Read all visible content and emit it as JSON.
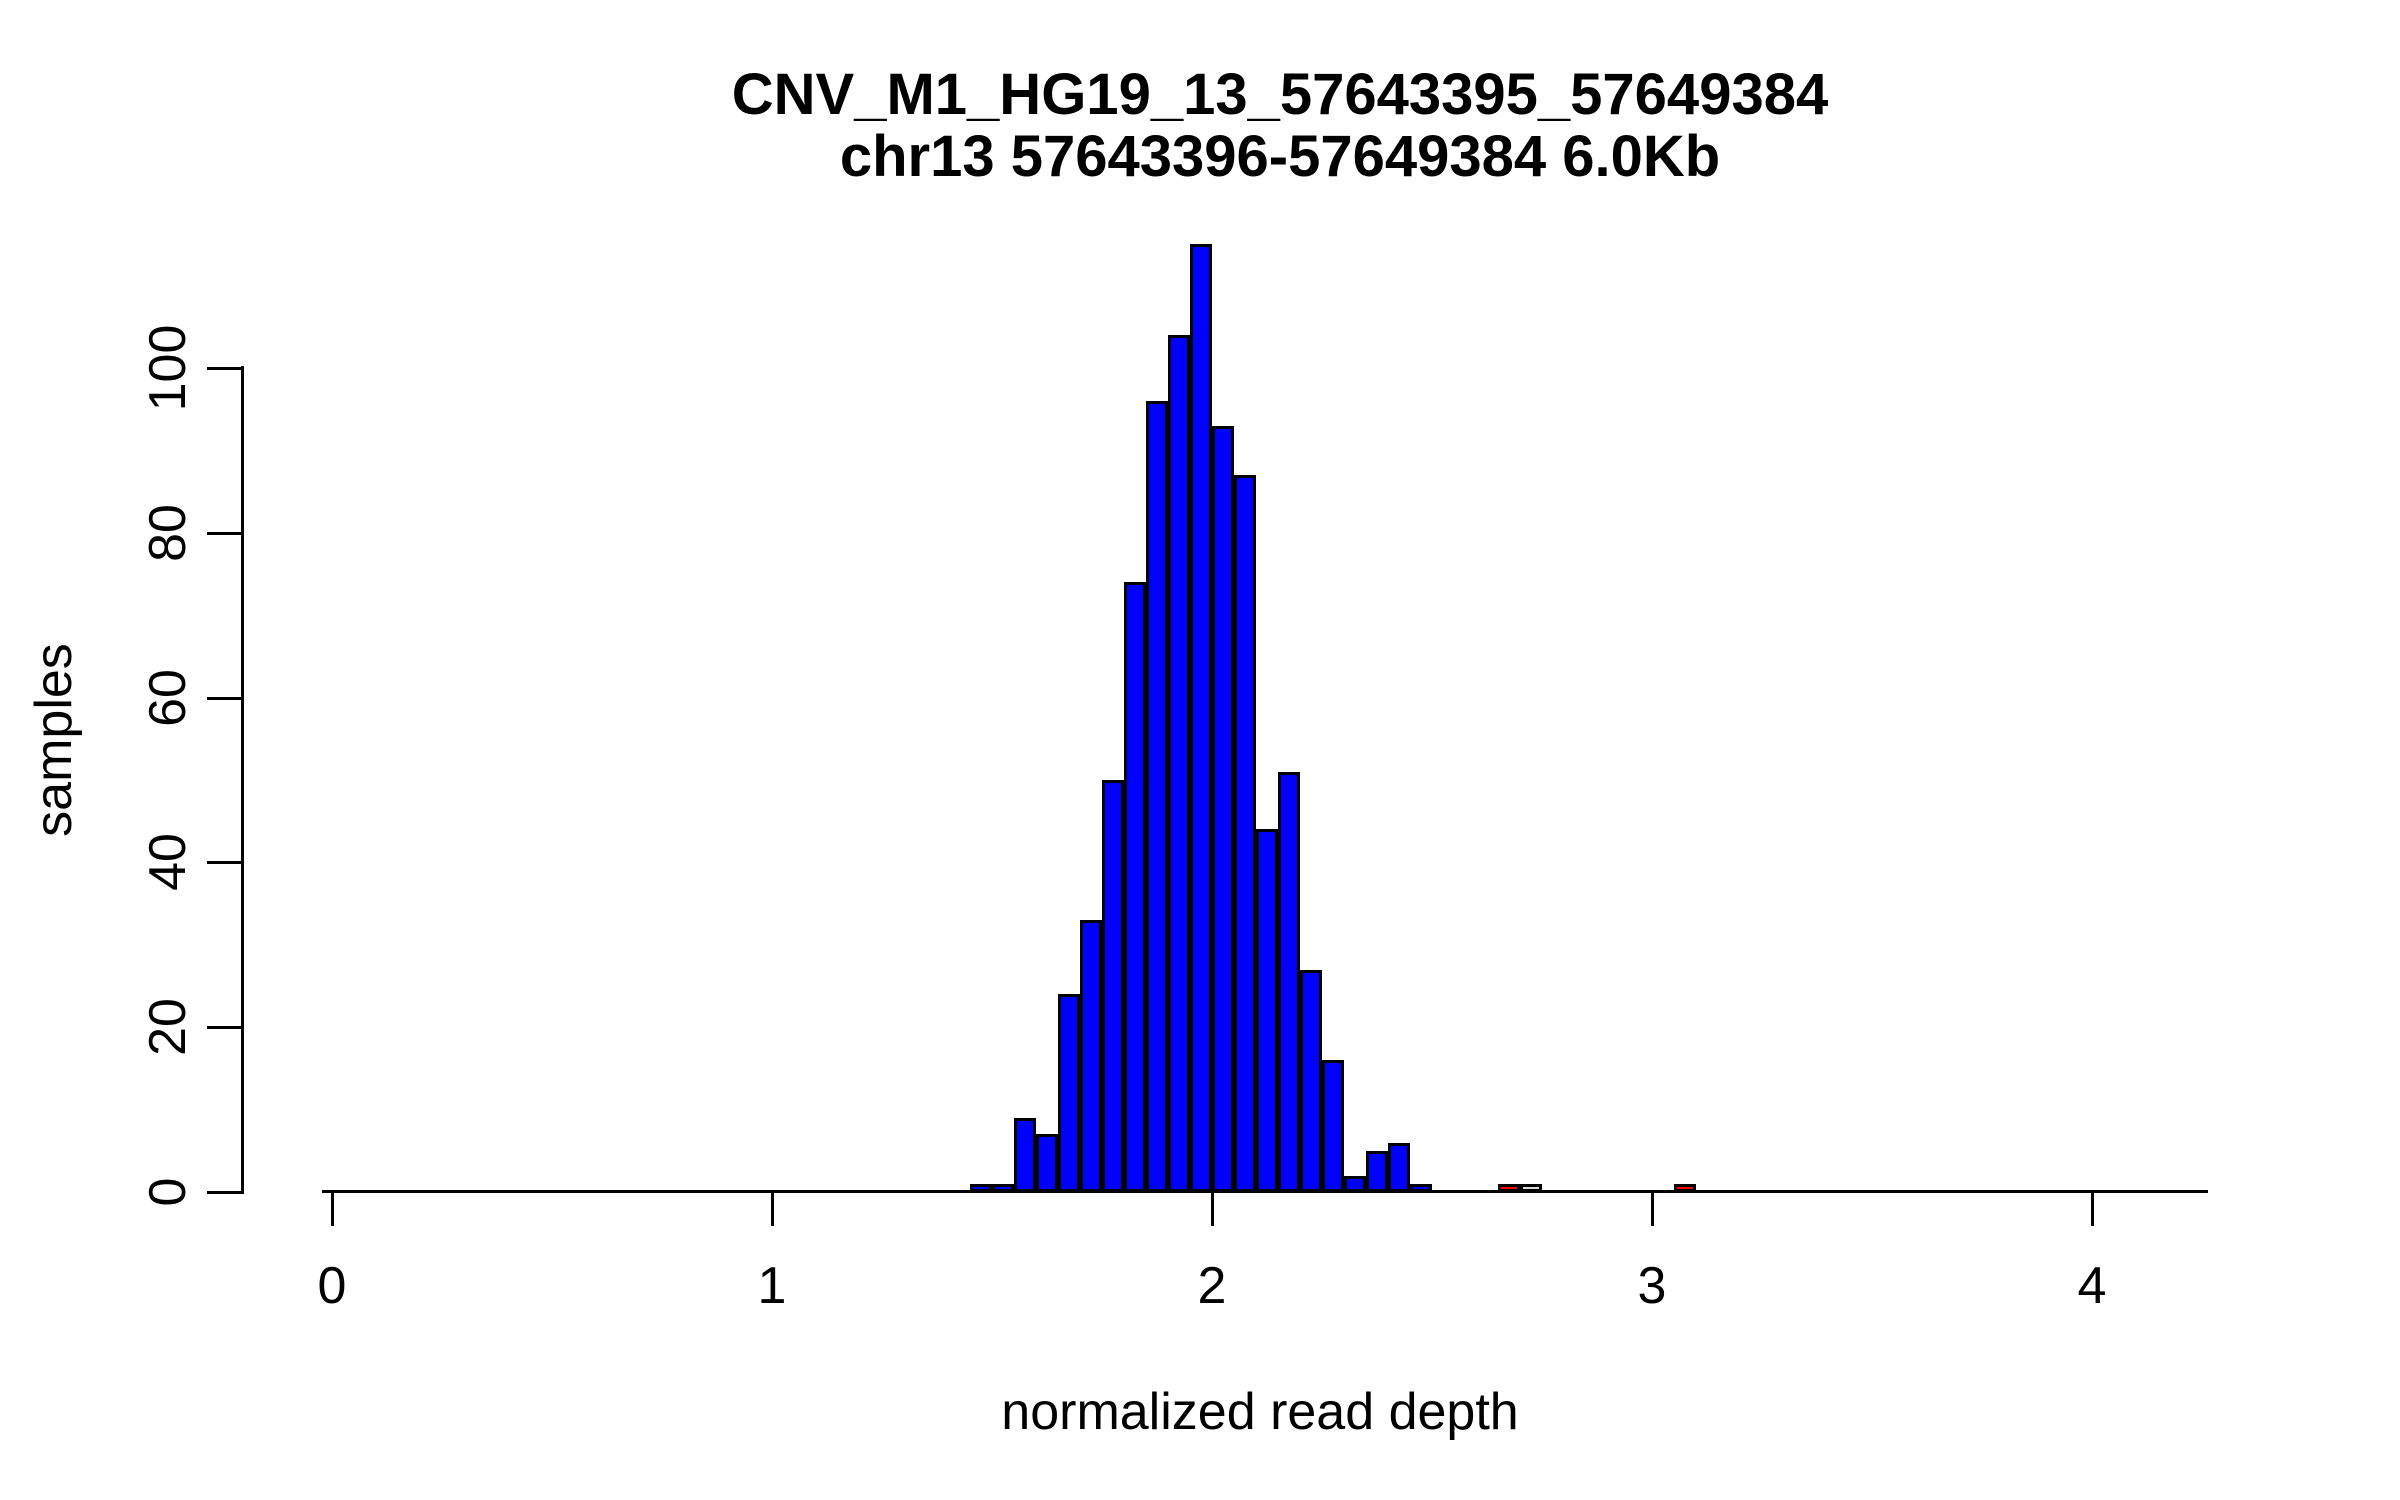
{
  "page": {
    "background": "#ffffff"
  },
  "chart_data": {
    "type": "bar",
    "chart_kind": "histogram",
    "title": "CNV_M1_HG19_13_57643395_57649384",
    "subtitle": "chr13 57643396-57649384 6.0Kb",
    "xlabel": "normalized read depth",
    "ylabel": "samples",
    "xlim": [
      0,
      4.3
    ],
    "ylim": [
      0,
      115
    ],
    "grid": "off",
    "legend": "none",
    "x_ticks": [
      0,
      1,
      2,
      3,
      4
    ],
    "x_tick_labels": [
      "0",
      "1",
      "2",
      "3",
      "4"
    ],
    "y_ticks": [
      0,
      20,
      40,
      60,
      80,
      100
    ],
    "y_tick_labels": [
      "0",
      "20",
      "40",
      "60",
      "80",
      "100"
    ],
    "bin_width": 0.05,
    "bar_border_color": "#000000",
    "main_color": "#0000ff",
    "outlier_color": "#ff0000",
    "neutral_color": "#d9d9d9",
    "bars": [
      {
        "bin_start": 1.45,
        "count": 1,
        "color": "#0000ff"
      },
      {
        "bin_start": 1.5,
        "count": 1,
        "color": "#0000ff"
      },
      {
        "bin_start": 1.55,
        "count": 9,
        "color": "#0000ff"
      },
      {
        "bin_start": 1.6,
        "count": 7,
        "color": "#0000ff"
      },
      {
        "bin_start": 1.65,
        "count": 24,
        "color": "#0000ff"
      },
      {
        "bin_start": 1.7,
        "count": 33,
        "color": "#0000ff"
      },
      {
        "bin_start": 1.75,
        "count": 50,
        "color": "#0000ff"
      },
      {
        "bin_start": 1.8,
        "count": 74,
        "color": "#0000ff"
      },
      {
        "bin_start": 1.85,
        "count": 96,
        "color": "#0000ff"
      },
      {
        "bin_start": 1.9,
        "count": 104,
        "color": "#0000ff"
      },
      {
        "bin_start": 1.95,
        "count": 115,
        "color": "#0000ff"
      },
      {
        "bin_start": 2.0,
        "count": 93,
        "color": "#0000ff"
      },
      {
        "bin_start": 2.05,
        "count": 87,
        "color": "#0000ff"
      },
      {
        "bin_start": 2.1,
        "count": 44,
        "color": "#0000ff"
      },
      {
        "bin_start": 2.15,
        "count": 51,
        "color": "#0000ff"
      },
      {
        "bin_start": 2.2,
        "count": 27,
        "color": "#0000ff"
      },
      {
        "bin_start": 2.25,
        "count": 16,
        "color": "#0000ff"
      },
      {
        "bin_start": 2.3,
        "count": 2,
        "color": "#0000ff"
      },
      {
        "bin_start": 2.35,
        "count": 5,
        "color": "#0000ff"
      },
      {
        "bin_start": 2.4,
        "count": 6,
        "color": "#0000ff"
      },
      {
        "bin_start": 2.45,
        "count": 1,
        "color": "#0000ff"
      },
      {
        "bin_start": 2.65,
        "count": 1,
        "color": "#ff0000"
      },
      {
        "bin_start": 2.7,
        "count": 1,
        "color": "#d9d9d9"
      },
      {
        "bin_start": 3.05,
        "count": 1,
        "color": "#ff0000"
      }
    ]
  }
}
